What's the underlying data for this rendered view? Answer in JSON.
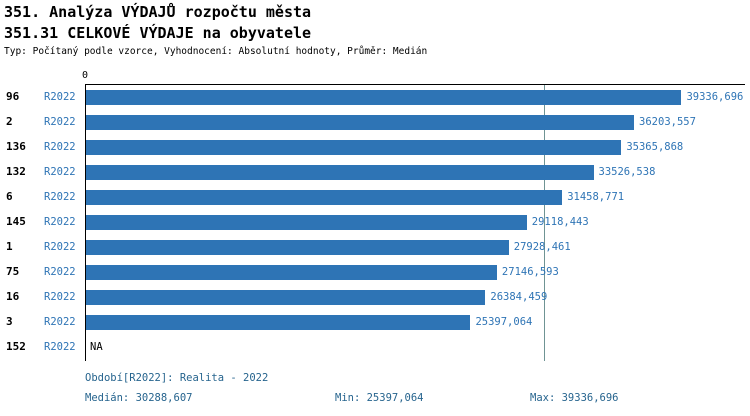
{
  "header": {
    "meta": "Typ: Počítaný podle vzorce, Vyhodnocení: Absolutní hodnoty, Průměr: Medián"
  },
  "footer": {
    "period": "Období[R2022]: Realita - 2022",
    "median": "Medián: 30288,607",
    "min": "Min: 25397,064",
    "max": "Max: 39336,696"
  },
  "chart_data": {
    "type": "bar",
    "orientation": "horizontal",
    "title": "351. Analýza VÝDAJŮ rozpočtu města",
    "subtitle": "351.31 CELKOVÉ VÝDAJE na obyvatele",
    "series_label": "R2022",
    "x_zero_label": "0",
    "xlim": [
      0,
      43600
    ],
    "median_value": 30288.607,
    "min_value": 25397.064,
    "max_value": 39336.696,
    "grid": false,
    "legend": "none",
    "rows": [
      {
        "code": "96",
        "period": "R2022",
        "value": 39336.696,
        "label": "39336,696"
      },
      {
        "code": "2",
        "period": "R2022",
        "value": 36203.557,
        "label": "36203,557"
      },
      {
        "code": "136",
        "period": "R2022",
        "value": 35365.868,
        "label": "35365,868"
      },
      {
        "code": "132",
        "period": "R2022",
        "value": 33526.538,
        "label": "33526,538"
      },
      {
        "code": "6",
        "period": "R2022",
        "value": 31458.771,
        "label": "31458,771"
      },
      {
        "code": "145",
        "period": "R2022",
        "value": 29118.443,
        "label": "29118,443"
      },
      {
        "code": "1",
        "period": "R2022",
        "value": 27928.461,
        "label": "27928,461"
      },
      {
        "code": "75",
        "period": "R2022",
        "value": 27146.593,
        "label": "27146,593"
      },
      {
        "code": "16",
        "period": "R2022",
        "value": 26384.459,
        "label": "26384,459"
      },
      {
        "code": "3",
        "period": "R2022",
        "value": 25397.064,
        "label": "25397,064"
      },
      {
        "code": "152",
        "period": "R2022",
        "value": null,
        "label": "NA"
      }
    ],
    "colors": {
      "bar": "#2e74b5",
      "value_label": "#2e74b5",
      "series_label": "#2e74b5",
      "median_line": "#6f9494",
      "footer_text": "#26648e"
    }
  }
}
